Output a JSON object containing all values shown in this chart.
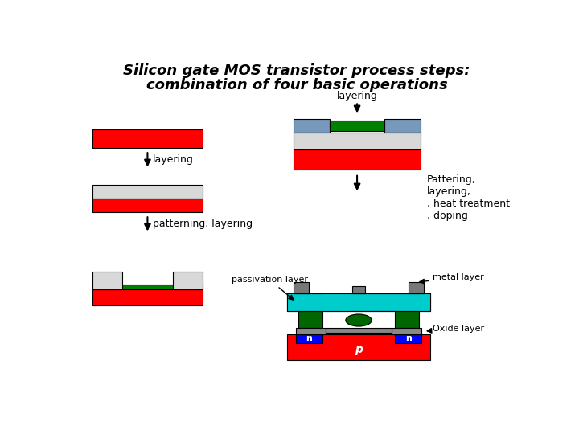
{
  "title_line1": "Silicon gate MOS transistor process steps:",
  "title_line2": "combination of four basic operations",
  "bg_color": "#ffffff",
  "colors": {
    "red": "#ff0000",
    "white_gray": "#d8d8d8",
    "green": "#008000",
    "blue_gray": "#7799bb",
    "cyan": "#00cccc",
    "dark_green": "#006600",
    "gray": "#888888",
    "blue": "#0000ff",
    "dark_gray": "#777777",
    "light_gray": "#aaaaaa"
  },
  "labels": {
    "layering_top": "layering",
    "layering_left": "layering",
    "patterning": "patterning, layering",
    "pattering_right": "Pattering,\nlayering,\n, heat treatment\n, doping",
    "passivation": "passivation layer",
    "metal": "metal layer",
    "oxide": "Oxide layer",
    "n1": "n",
    "n2": "n",
    "p": "p"
  }
}
